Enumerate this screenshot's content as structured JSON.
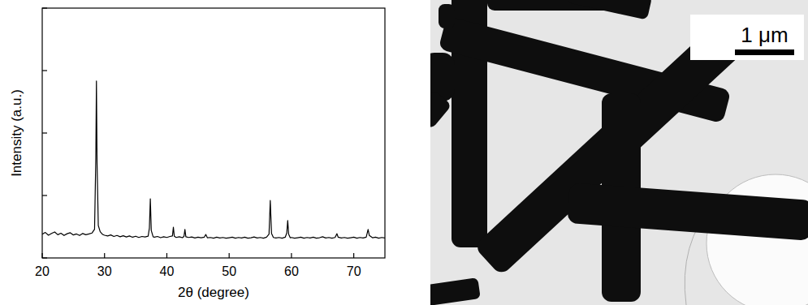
{
  "chart_data": {
    "type": "line",
    "x_label": "2θ (degree)",
    "y_label": "Intensity (a.u.)",
    "x": [
      20,
      20.5,
      21,
      21.5,
      22,
      22.5,
      23,
      23.5,
      24,
      24.5,
      25,
      25.5,
      26,
      26.5,
      27,
      27.5,
      28,
      28.4,
      28.6,
      28.7,
      28.8,
      29.0,
      29.3,
      29.7,
      30,
      30.5,
      31,
      31.5,
      32,
      32.5,
      33,
      33.5,
      34,
      34.5,
      35,
      35.5,
      36,
      36.5,
      37,
      37.2,
      37.35,
      37.5,
      37.8,
      38,
      38.5,
      39,
      39.5,
      40,
      40.5,
      40.9,
      41.05,
      41.2,
      41.5,
      42,
      42.5,
      42.75,
      42.9,
      43.05,
      43.5,
      44,
      44.5,
      45,
      45.5,
      46,
      46.25,
      46.5,
      47,
      47.5,
      48,
      48.5,
      49,
      49.5,
      50,
      50.5,
      51,
      51.5,
      52,
      52.5,
      53,
      53.5,
      54,
      54.5,
      55,
      55.5,
      56,
      56.4,
      56.6,
      56.8,
      57.1,
      57.5,
      58,
      58.5,
      59,
      59.25,
      59.4,
      59.55,
      59.8,
      60,
      60.5,
      61,
      61.5,
      62,
      62.5,
      63,
      63.5,
      64,
      64.5,
      65,
      65.5,
      66,
      66.5,
      67,
      67.3,
      67.5,
      68,
      68.5,
      69,
      69.5,
      70,
      70.5,
      71,
      71.5,
      72,
      72.3,
      72.5,
      73,
      73.5,
      74,
      74.5,
      75
    ],
    "values": [
      9.5,
      10.2,
      9.1,
      9.8,
      10.4,
      9.3,
      9.9,
      9.0,
      9.7,
      10.1,
      9.2,
      9.6,
      9.0,
      9.8,
      9.3,
      9.6,
      10.0,
      11.5,
      40,
      70.8,
      38,
      13,
      10.5,
      9.4,
      9.1,
      8.8,
      9.2,
      8.6,
      9.0,
      8.5,
      8.9,
      8.4,
      8.8,
      8.3,
      8.7,
      8.2,
      8.6,
      8.4,
      8.7,
      12,
      23.7,
      11,
      8.5,
      8.3,
      8.6,
      8.1,
      8.5,
      8.2,
      8.6,
      8.8,
      12.3,
      8.7,
      8.2,
      8.5,
      8.1,
      8.6,
      11.4,
      8.5,
      8.2,
      8.4,
      8.0,
      8.3,
      8.1,
      8.3,
      9.4,
      8.1,
      8.2,
      7.9,
      8.3,
      8.0,
      8.2,
      7.9,
      8.1,
      8.3,
      7.9,
      8.2,
      8.0,
      8.3,
      7.9,
      8.1,
      8.4,
      8.0,
      8.2,
      7.9,
      8.3,
      9.5,
      23,
      9.8,
      8.2,
      8.0,
      8.2,
      7.9,
      8.3,
      10,
      15,
      9.5,
      8.1,
      8.2,
      7.9,
      8.1,
      8.3,
      7.9,
      8.2,
      8.0,
      8.3,
      7.9,
      8.1,
      8.5,
      8.0,
      8.2,
      7.9,
      8.2,
      9.7,
      8.3,
      8.0,
      8.2,
      7.9,
      8.1,
      8.3,
      7.9,
      8.2,
      8.0,
      8.3,
      11.4,
      9.0,
      8.1,
      8.3,
      7.9,
      8.2,
      8.0
    ],
    "color": "#000000",
    "xlim": [
      20,
      75
    ],
    "xticks": [
      20,
      30,
      40,
      50,
      60,
      70
    ],
    "ylim": [
      0,
      100
    ],
    "yticks": [
      0,
      25,
      50,
      75,
      100
    ],
    "tick_labels": "x",
    "grid": false
  },
  "image": {
    "scale_bar_label": "1 μm"
  }
}
